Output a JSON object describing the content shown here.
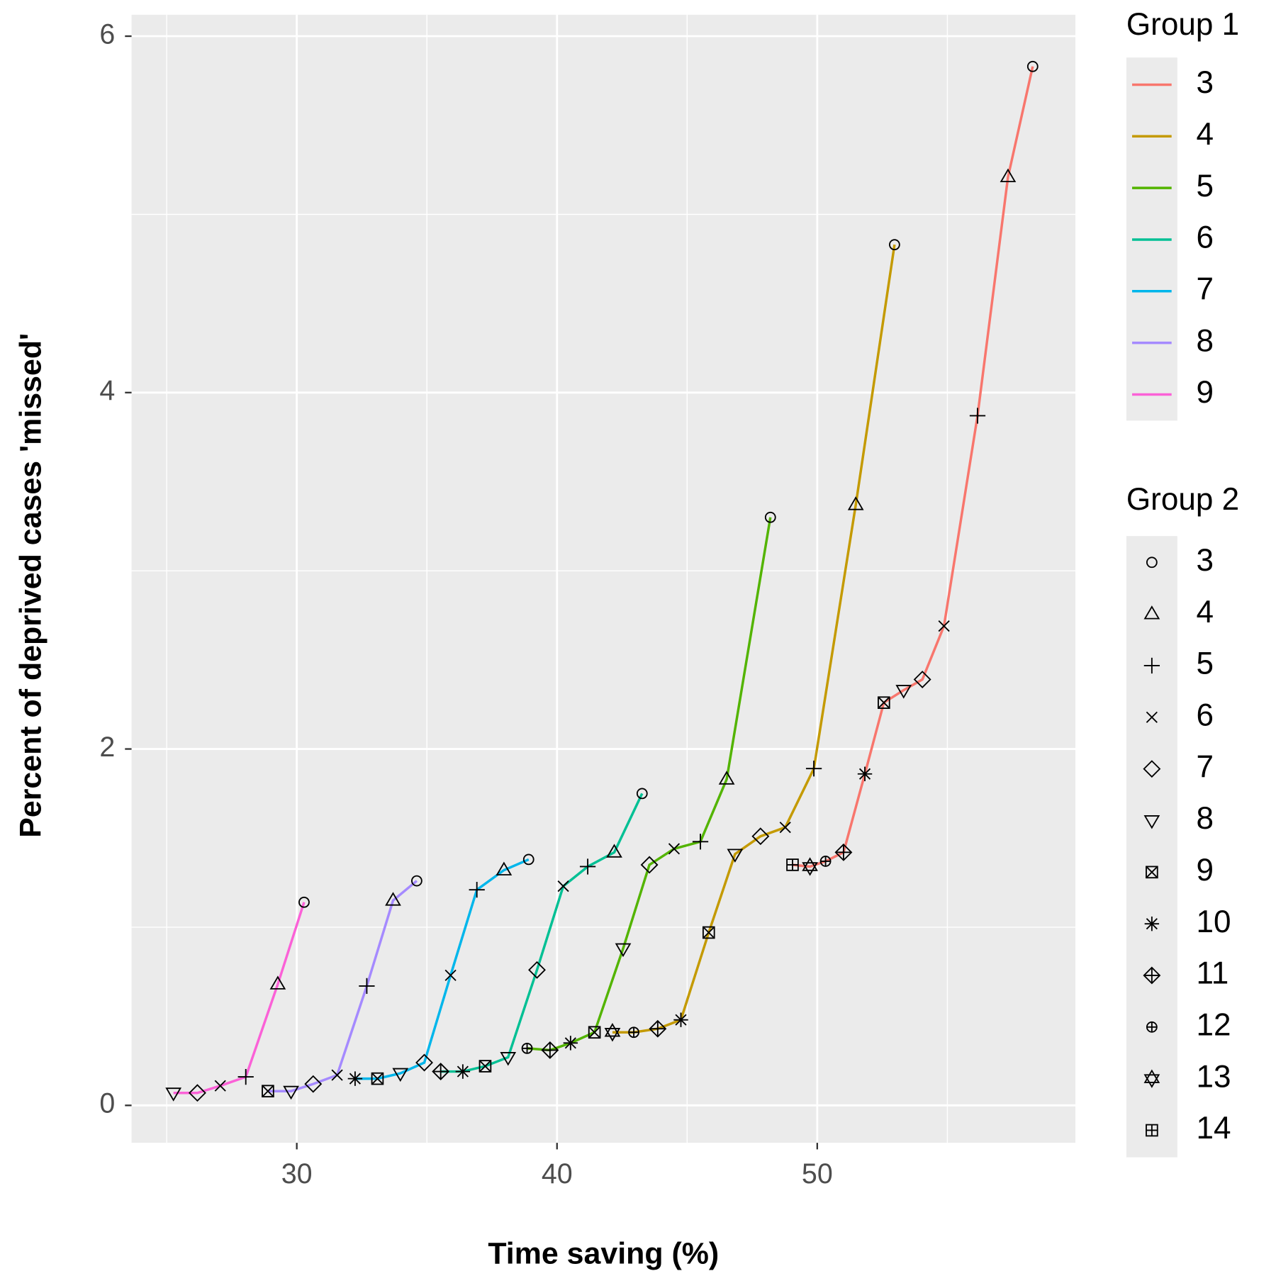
{
  "chart_data": {
    "type": "line",
    "x_label": "Time saving (%)",
    "y_label": "Percent of deprived cases 'missed'",
    "xlim": [
      23.65,
      59.92
    ],
    "ylim": [
      -0.21,
      6.12
    ],
    "xticks": [
      30,
      40,
      50
    ],
    "yticks": [
      0,
      2,
      4,
      6
    ],
    "x_minor_ticks": [
      25,
      35,
      45,
      55
    ],
    "y_minor_ticks": [
      1,
      3,
      5
    ],
    "grid": true,
    "color_legend_title": "Group 1",
    "shape_legend_title": "Group 2",
    "shape_legend_labels": [
      3,
      4,
      5,
      6,
      7,
      8,
      9,
      10,
      11,
      12,
      13,
      14
    ],
    "series": [
      {
        "name": "3",
        "color": "#F8766D",
        "x": [
          49.05,
          49.72,
          50.32,
          51.01,
          51.83,
          52.56,
          53.32,
          54.04,
          54.87,
          56.16,
          57.33,
          58.28
        ],
        "values": [
          1.35,
          1.34,
          1.37,
          1.42,
          1.86,
          2.26,
          2.33,
          2.39,
          2.69,
          3.87,
          5.21,
          5.83
        ],
        "shapes": [
          14,
          13,
          12,
          11,
          10,
          9,
          8,
          7,
          6,
          5,
          4,
          3
        ]
      },
      {
        "name": "4",
        "color": "#C49A00",
        "x": [
          42.13,
          42.95,
          43.87,
          44.76,
          45.83,
          46.84,
          47.82,
          48.77,
          49.87,
          51.48,
          52.97
        ],
        "values": [
          0.41,
          0.41,
          0.43,
          0.48,
          0.97,
          1.41,
          1.51,
          1.56,
          1.89,
          3.37,
          4.83
        ],
        "shapes": [
          13,
          12,
          11,
          10,
          9,
          8,
          7,
          6,
          5,
          4,
          3
        ]
      },
      {
        "name": "5",
        "color": "#53B400",
        "x": [
          38.85,
          39.73,
          40.52,
          41.44,
          42.54,
          43.55,
          44.5,
          45.51,
          46.52,
          48.2
        ],
        "values": [
          0.32,
          0.31,
          0.35,
          0.41,
          0.88,
          1.35,
          1.44,
          1.48,
          1.83,
          3.3
        ],
        "shapes": [
          12,
          11,
          10,
          9,
          8,
          7,
          6,
          5,
          4,
          3
        ]
      },
      {
        "name": "6",
        "color": "#00C094",
        "x": [
          35.53,
          36.38,
          37.24,
          38.12,
          39.23,
          40.24,
          41.18,
          42.2,
          43.27
        ],
        "values": [
          0.19,
          0.19,
          0.22,
          0.27,
          0.76,
          1.23,
          1.34,
          1.42,
          1.75
        ],
        "shapes": [
          11,
          10,
          9,
          8,
          7,
          6,
          5,
          4,
          3
        ]
      },
      {
        "name": "7",
        "color": "#00B6EB",
        "x": [
          32.24,
          33.1,
          33.98,
          34.9,
          35.91,
          36.92,
          37.96,
          38.91
        ],
        "values": [
          0.15,
          0.15,
          0.18,
          0.24,
          0.73,
          1.21,
          1.32,
          1.38
        ],
        "shapes": [
          10,
          9,
          8,
          7,
          6,
          5,
          4,
          3
        ]
      },
      {
        "name": "8",
        "color": "#A58AFF",
        "x": [
          28.89,
          29.78,
          30.63,
          31.55,
          32.69,
          33.7,
          34.61
        ],
        "values": [
          0.08,
          0.08,
          0.12,
          0.17,
          0.67,
          1.15,
          1.26
        ],
        "shapes": [
          9,
          8,
          7,
          6,
          5,
          4,
          3
        ]
      },
      {
        "name": "9",
        "color": "#FB61D7",
        "x": [
          25.26,
          26.18,
          27.06,
          28.04,
          29.27,
          30.28
        ],
        "values": [
          0.07,
          0.07,
          0.11,
          0.16,
          0.68,
          1.14
        ],
        "shapes": [
          8,
          7,
          6,
          5,
          4,
          3
        ]
      }
    ]
  }
}
